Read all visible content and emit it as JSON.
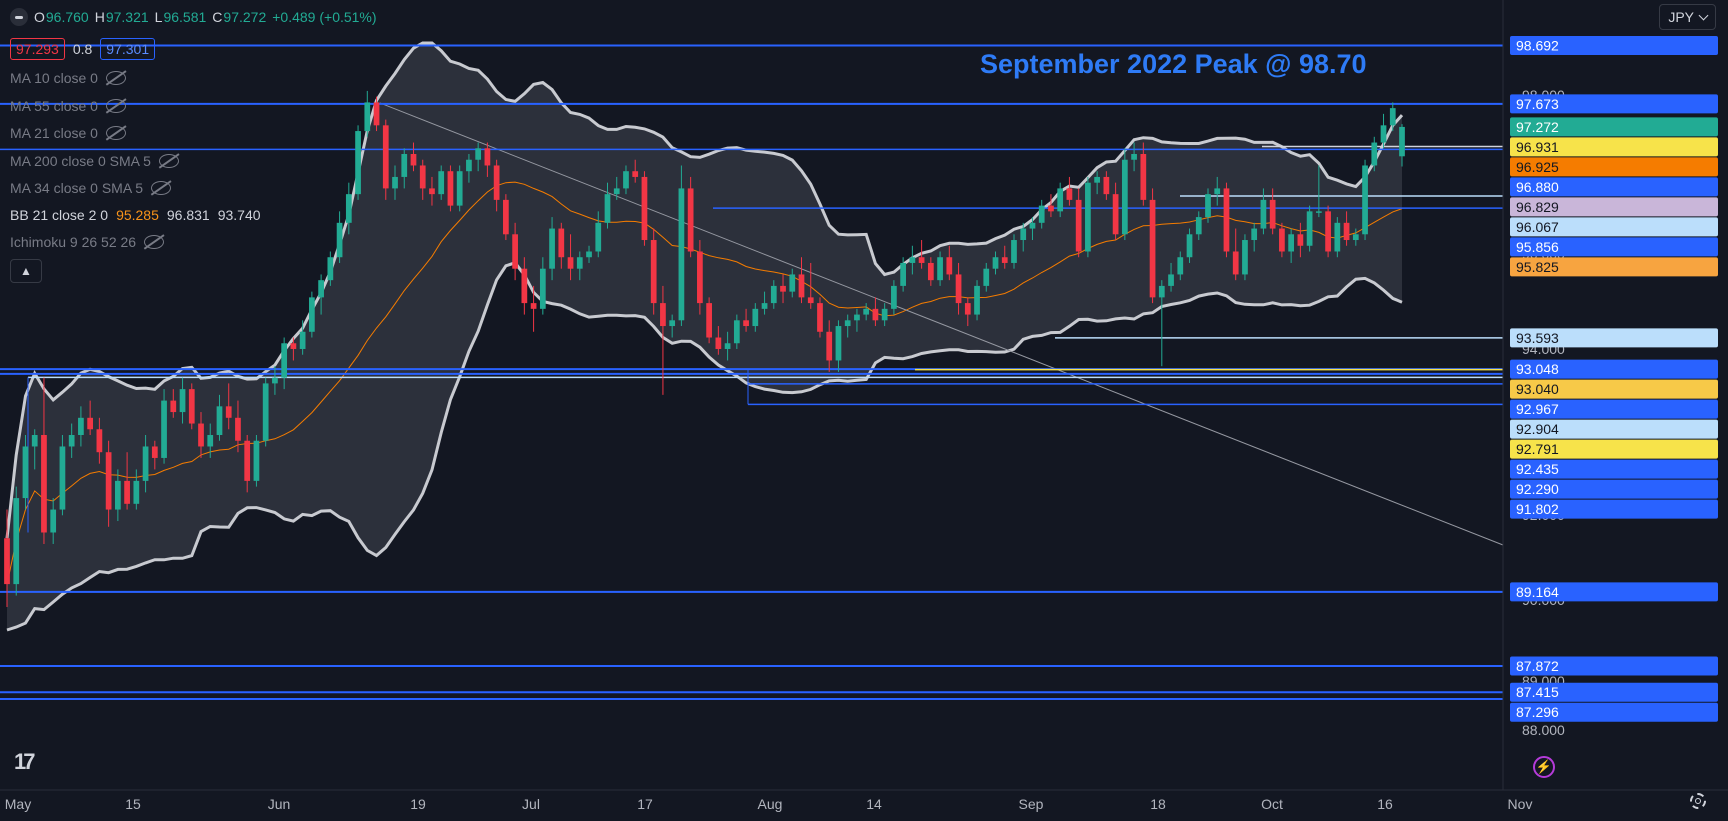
{
  "header": {
    "open_label": "O",
    "open": "96.760",
    "high_label": "H",
    "high": "97.321",
    "low_label": "L",
    "low": "96.581",
    "close_label": "C",
    "close": "97.272",
    "change": "+0.489 (+0.51%)"
  },
  "price_box": {
    "sell": "97.293",
    "spread": "0.8",
    "buy": "97.301"
  },
  "indicators": [
    {
      "label": "MA 10 close 0",
      "hidden": true
    },
    {
      "label": "MA 55 close 0",
      "hidden": true
    },
    {
      "label": "MA 21 close 0",
      "hidden": true
    },
    {
      "label": "MA 200 close 0 SMA 5",
      "hidden": true
    },
    {
      "label": "MA 34 close 0 SMA 5",
      "hidden": true
    }
  ],
  "bb": {
    "label": "BB 21 close 2 0",
    "basis": "95.285",
    "upper": "96.831",
    "lower": "93.740"
  },
  "ichimoku": {
    "label": "Ichimoku 9 26 52 26",
    "hidden": true
  },
  "currency": "JPY",
  "colors": {
    "up": "#22ab94",
    "down": "#f23645",
    "level": "#2962ff",
    "bands": "#c8cad0",
    "basis": "#f57c00",
    "annotation": "#2e7bf6"
  },
  "chart_data": {
    "type": "candlestick",
    "annotation": "September 2022 Peak @ 98.70",
    "x_ticks": [
      "May",
      "15",
      "Jun",
      "19",
      "Jul",
      "17",
      "Aug",
      "14",
      "Sep",
      "18",
      "Oct",
      "16",
      "Nov"
    ],
    "y_ticks": [
      "98.000",
      "96.000",
      "94.000",
      "92.000",
      "90.000",
      "89.000",
      "88.000"
    ],
    "price_labels": [
      {
        "value": "98.692",
        "color": "#2962ff",
        "text": "#ffffff"
      },
      {
        "value": "97.673",
        "color": "#2962ff",
        "text": "#ffffff"
      },
      {
        "value": "97.272",
        "color": "#22ab94",
        "text": "#ffffff"
      },
      {
        "value": "96.931",
        "color": "#f7e34a",
        "text": "#131722"
      },
      {
        "value": "96.925",
        "color": "#f57c00",
        "text": "#131722"
      },
      {
        "value": "96.880",
        "color": "#2962ff",
        "text": "#ffffff"
      },
      {
        "value": "96.829",
        "color": "#c9b6d9",
        "text": "#131722"
      },
      {
        "value": "96.067",
        "color": "#bbdefb",
        "text": "#131722"
      },
      {
        "value": "95.856",
        "color": "#2962ff",
        "text": "#ffffff"
      },
      {
        "value": "95.825",
        "color": "#f7a440",
        "text": "#131722"
      },
      {
        "value": "93.593",
        "color": "#bbdefb",
        "text": "#131722"
      },
      {
        "value": "93.048",
        "color": "#2962ff",
        "text": "#ffffff"
      },
      {
        "value": "93.040",
        "color": "#f7c948",
        "text": "#131722"
      },
      {
        "value": "92.967",
        "color": "#2962ff",
        "text": "#ffffff"
      },
      {
        "value": "92.904",
        "color": "#bbdefb",
        "text": "#131722"
      },
      {
        "value": "92.791",
        "color": "#f7e34a",
        "text": "#131722"
      },
      {
        "value": "92.435",
        "color": "#2962ff",
        "text": "#ffffff"
      },
      {
        "value": "92.290",
        "color": "#2962ff",
        "text": "#ffffff"
      },
      {
        "value": "91.802",
        "color": "#2962ff",
        "text": "#ffffff"
      },
      {
        "value": "89.164",
        "color": "#2962ff",
        "text": "#ffffff"
      },
      {
        "value": "87.872",
        "color": "#2962ff",
        "text": "#ffffff"
      },
      {
        "value": "87.415",
        "color": "#2962ff",
        "text": "#ffffff"
      },
      {
        "value": "87.296",
        "color": "#2962ff",
        "text": "#ffffff"
      }
    ],
    "candles": [
      {
        "o": 90.1,
        "h": 90.6,
        "l": 88.9,
        "c": 89.3
      },
      {
        "o": 89.3,
        "h": 91.0,
        "l": 89.1,
        "c": 90.8
      },
      {
        "o": 90.8,
        "h": 91.9,
        "l": 90.6,
        "c": 91.7
      },
      {
        "o": 91.7,
        "h": 92.0,
        "l": 91.3,
        "c": 91.9
      },
      {
        "o": 91.9,
        "h": 92.9,
        "l": 90.0,
        "c": 90.2
      },
      {
        "o": 90.2,
        "h": 90.8,
        "l": 90.0,
        "c": 90.6
      },
      {
        "o": 90.6,
        "h": 91.9,
        "l": 90.5,
        "c": 91.7
      },
      {
        "o": 91.7,
        "h": 92.1,
        "l": 91.5,
        "c": 91.9
      },
      {
        "o": 91.9,
        "h": 92.4,
        "l": 91.7,
        "c": 92.2
      },
      {
        "o": 92.2,
        "h": 92.5,
        "l": 91.9,
        "c": 92.0
      },
      {
        "o": 92.0,
        "h": 92.2,
        "l": 91.4,
        "c": 91.6
      },
      {
        "o": 91.6,
        "h": 91.8,
        "l": 90.3,
        "c": 90.6
      },
      {
        "o": 90.6,
        "h": 91.3,
        "l": 90.4,
        "c": 91.1
      },
      {
        "o": 91.1,
        "h": 91.6,
        "l": 90.6,
        "c": 90.7
      },
      {
        "o": 90.7,
        "h": 91.3,
        "l": 90.6,
        "c": 91.1
      },
      {
        "o": 91.1,
        "h": 91.9,
        "l": 90.9,
        "c": 91.7
      },
      {
        "o": 91.7,
        "h": 91.8,
        "l": 91.3,
        "c": 91.5
      },
      {
        "o": 91.5,
        "h": 92.7,
        "l": 91.4,
        "c": 92.5
      },
      {
        "o": 92.5,
        "h": 92.7,
        "l": 92.2,
        "c": 92.3
      },
      {
        "o": 92.3,
        "h": 92.9,
        "l": 92.1,
        "c": 92.7
      },
      {
        "o": 92.7,
        "h": 92.8,
        "l": 92.0,
        "c": 92.1
      },
      {
        "o": 92.1,
        "h": 92.3,
        "l": 91.5,
        "c": 91.7
      },
      {
        "o": 91.7,
        "h": 92.1,
        "l": 91.5,
        "c": 91.9
      },
      {
        "o": 91.9,
        "h": 92.6,
        "l": 91.8,
        "c": 92.4
      },
      {
        "o": 92.4,
        "h": 92.8,
        "l": 92.0,
        "c": 92.2
      },
      {
        "o": 92.2,
        "h": 92.5,
        "l": 91.6,
        "c": 91.8
      },
      {
        "o": 91.8,
        "h": 91.9,
        "l": 90.9,
        "c": 91.1
      },
      {
        "o": 91.1,
        "h": 91.9,
        "l": 91.0,
        "c": 91.8
      },
      {
        "o": 91.8,
        "h": 92.9,
        "l": 91.7,
        "c": 92.8
      },
      {
        "o": 92.8,
        "h": 93.1,
        "l": 92.6,
        "c": 92.9
      },
      {
        "o": 92.9,
        "h": 93.6,
        "l": 92.7,
        "c": 93.5
      },
      {
        "o": 93.5,
        "h": 93.6,
        "l": 93.2,
        "c": 93.4
      },
      {
        "o": 93.4,
        "h": 93.9,
        "l": 93.3,
        "c": 93.7
      },
      {
        "o": 93.7,
        "h": 94.4,
        "l": 93.6,
        "c": 94.3
      },
      {
        "o": 94.3,
        "h": 94.7,
        "l": 94.0,
        "c": 94.6
      },
      {
        "o": 94.6,
        "h": 95.1,
        "l": 94.5,
        "c": 95.0
      },
      {
        "o": 95.0,
        "h": 95.8,
        "l": 94.9,
        "c": 95.6
      },
      {
        "o": 95.6,
        "h": 96.3,
        "l": 95.4,
        "c": 96.1
      },
      {
        "o": 96.1,
        "h": 97.3,
        "l": 96.0,
        "c": 97.2
      },
      {
        "o": 97.2,
        "h": 97.9,
        "l": 97.1,
        "c": 97.7
      },
      {
        "o": 97.7,
        "h": 97.8,
        "l": 97.2,
        "c": 97.3
      },
      {
        "o": 97.3,
        "h": 97.4,
        "l": 96.0,
        "c": 96.2
      },
      {
        "o": 96.2,
        "h": 96.6,
        "l": 96.0,
        "c": 96.4
      },
      {
        "o": 96.4,
        "h": 96.9,
        "l": 96.2,
        "c": 96.8
      },
      {
        "o": 96.8,
        "h": 97.0,
        "l": 96.5,
        "c": 96.6
      },
      {
        "o": 96.6,
        "h": 96.7,
        "l": 96.0,
        "c": 96.2
      },
      {
        "o": 96.2,
        "h": 96.4,
        "l": 95.9,
        "c": 96.1
      },
      {
        "o": 96.1,
        "h": 96.6,
        "l": 96.0,
        "c": 96.5
      },
      {
        "o": 96.5,
        "h": 96.6,
        "l": 95.8,
        "c": 95.9
      },
      {
        "o": 95.9,
        "h": 96.6,
        "l": 95.8,
        "c": 96.5
      },
      {
        "o": 96.5,
        "h": 96.8,
        "l": 96.3,
        "c": 96.7
      },
      {
        "o": 96.7,
        "h": 97.0,
        "l": 96.5,
        "c": 96.9
      },
      {
        "o": 96.9,
        "h": 97.0,
        "l": 96.4,
        "c": 96.6
      },
      {
        "o": 96.6,
        "h": 96.7,
        "l": 95.8,
        "c": 96.0
      },
      {
        "o": 96.0,
        "h": 96.1,
        "l": 95.3,
        "c": 95.4
      },
      {
        "o": 95.4,
        "h": 95.6,
        "l": 94.6,
        "c": 94.8
      },
      {
        "o": 94.8,
        "h": 95.0,
        "l": 94.0,
        "c": 94.2
      },
      {
        "o": 94.2,
        "h": 94.5,
        "l": 93.7,
        "c": 94.1
      },
      {
        "o": 94.1,
        "h": 95.0,
        "l": 94.0,
        "c": 94.8
      },
      {
        "o": 94.8,
        "h": 95.7,
        "l": 94.6,
        "c": 95.5
      },
      {
        "o": 95.5,
        "h": 95.6,
        "l": 94.8,
        "c": 95.0
      },
      {
        "o": 95.0,
        "h": 95.4,
        "l": 94.6,
        "c": 94.8
      },
      {
        "o": 94.8,
        "h": 95.1,
        "l": 94.6,
        "c": 95.0
      },
      {
        "o": 95.0,
        "h": 95.2,
        "l": 94.9,
        "c": 95.1
      },
      {
        "o": 95.1,
        "h": 95.8,
        "l": 95.0,
        "c": 95.6
      },
      {
        "o": 95.6,
        "h": 96.3,
        "l": 95.5,
        "c": 96.1
      },
      {
        "o": 96.1,
        "h": 96.4,
        "l": 96.0,
        "c": 96.2
      },
      {
        "o": 96.2,
        "h": 96.6,
        "l": 96.1,
        "c": 96.5
      },
      {
        "o": 96.5,
        "h": 96.7,
        "l": 96.3,
        "c": 96.4
      },
      {
        "o": 96.4,
        "h": 96.5,
        "l": 95.2,
        "c": 95.3
      },
      {
        "o": 95.3,
        "h": 95.5,
        "l": 94.0,
        "c": 94.2
      },
      {
        "o": 94.2,
        "h": 94.5,
        "l": 92.6,
        "c": 93.8
      },
      {
        "o": 93.8,
        "h": 94.0,
        "l": 93.6,
        "c": 93.9
      },
      {
        "o": 93.9,
        "h": 96.6,
        "l": 93.8,
        "c": 96.2
      },
      {
        "o": 96.2,
        "h": 96.4,
        "l": 95.0,
        "c": 95.1
      },
      {
        "o": 95.1,
        "h": 95.3,
        "l": 94.0,
        "c": 94.2
      },
      {
        "o": 94.2,
        "h": 94.3,
        "l": 93.5,
        "c": 93.6
      },
      {
        "o": 93.6,
        "h": 93.8,
        "l": 93.3,
        "c": 93.4
      },
      {
        "o": 93.4,
        "h": 93.7,
        "l": 93.2,
        "c": 93.5
      },
      {
        "o": 93.5,
        "h": 94.0,
        "l": 93.4,
        "c": 93.9
      },
      {
        "o": 93.9,
        "h": 94.1,
        "l": 93.7,
        "c": 93.8
      },
      {
        "o": 93.8,
        "h": 94.2,
        "l": 93.7,
        "c": 94.1
      },
      {
        "o": 94.1,
        "h": 94.4,
        "l": 94.0,
        "c": 94.2
      },
      {
        "o": 94.2,
        "h": 94.6,
        "l": 94.1,
        "c": 94.5
      },
      {
        "o": 94.5,
        "h": 94.7,
        "l": 94.2,
        "c": 94.4
      },
      {
        "o": 94.4,
        "h": 94.8,
        "l": 94.3,
        "c": 94.7
      },
      {
        "o": 94.7,
        "h": 95.0,
        "l": 94.2,
        "c": 94.3
      },
      {
        "o": 94.3,
        "h": 94.9,
        "l": 94.1,
        "c": 94.2
      },
      {
        "o": 94.2,
        "h": 94.3,
        "l": 93.6,
        "c": 93.7
      },
      {
        "o": 93.7,
        "h": 93.9,
        "l": 93.0,
        "c": 93.2
      },
      {
        "o": 93.2,
        "h": 93.9,
        "l": 93.0,
        "c": 93.8
      },
      {
        "o": 93.8,
        "h": 94.0,
        "l": 93.6,
        "c": 93.9
      },
      {
        "o": 93.9,
        "h": 94.1,
        "l": 93.7,
        "c": 94.0
      },
      {
        "o": 94.0,
        "h": 94.2,
        "l": 93.9,
        "c": 94.1
      },
      {
        "o": 94.1,
        "h": 94.3,
        "l": 93.8,
        "c": 93.9
      },
      {
        "o": 93.9,
        "h": 94.2,
        "l": 93.8,
        "c": 94.1
      },
      {
        "o": 94.1,
        "h": 94.6,
        "l": 94.0,
        "c": 94.5
      },
      {
        "o": 94.5,
        "h": 95.0,
        "l": 94.4,
        "c": 94.9
      },
      {
        "o": 94.9,
        "h": 95.2,
        "l": 94.7,
        "c": 95.0
      },
      {
        "o": 95.0,
        "h": 95.3,
        "l": 94.8,
        "c": 94.9
      },
      {
        "o": 94.9,
        "h": 95.0,
        "l": 94.5,
        "c": 94.6
      },
      {
        "o": 94.6,
        "h": 95.1,
        "l": 94.5,
        "c": 95.0
      },
      {
        "o": 95.0,
        "h": 95.2,
        "l": 94.6,
        "c": 94.7
      },
      {
        "o": 94.7,
        "h": 94.9,
        "l": 94.0,
        "c": 94.2
      },
      {
        "o": 94.2,
        "h": 94.3,
        "l": 93.8,
        "c": 94.0
      },
      {
        "o": 94.0,
        "h": 94.6,
        "l": 93.9,
        "c": 94.5
      },
      {
        "o": 94.5,
        "h": 94.9,
        "l": 94.4,
        "c": 94.8
      },
      {
        "o": 94.8,
        "h": 95.1,
        "l": 94.7,
        "c": 95.0
      },
      {
        "o": 95.0,
        "h": 95.2,
        "l": 94.8,
        "c": 94.9
      },
      {
        "o": 94.9,
        "h": 95.4,
        "l": 94.8,
        "c": 95.3
      },
      {
        "o": 95.3,
        "h": 95.6,
        "l": 95.1,
        "c": 95.5
      },
      {
        "o": 95.5,
        "h": 95.7,
        "l": 95.3,
        "c": 95.6
      },
      {
        "o": 95.6,
        "h": 96.0,
        "l": 95.5,
        "c": 95.9
      },
      {
        "o": 95.9,
        "h": 96.1,
        "l": 95.7,
        "c": 95.8
      },
      {
        "o": 95.8,
        "h": 96.3,
        "l": 95.7,
        "c": 96.2
      },
      {
        "o": 96.2,
        "h": 96.4,
        "l": 95.9,
        "c": 96.0
      },
      {
        "o": 96.0,
        "h": 96.2,
        "l": 95.0,
        "c": 95.1
      },
      {
        "o": 95.1,
        "h": 96.4,
        "l": 95.0,
        "c": 96.3
      },
      {
        "o": 96.3,
        "h": 96.5,
        "l": 96.1,
        "c": 96.4
      },
      {
        "o": 96.4,
        "h": 96.5,
        "l": 96.0,
        "c": 96.1
      },
      {
        "o": 96.1,
        "h": 96.3,
        "l": 95.3,
        "c": 95.4
      },
      {
        "o": 95.4,
        "h": 96.9,
        "l": 95.3,
        "c": 96.7
      },
      {
        "o": 96.7,
        "h": 97.0,
        "l": 96.5,
        "c": 96.8
      },
      {
        "o": 96.8,
        "h": 97.0,
        "l": 95.9,
        "c": 96.0
      },
      {
        "o": 96.0,
        "h": 96.2,
        "l": 94.2,
        "c": 94.3
      },
      {
        "o": 94.3,
        "h": 94.6,
        "l": 93.1,
        "c": 94.5
      },
      {
        "o": 94.5,
        "h": 94.9,
        "l": 94.4,
        "c": 94.7
      },
      {
        "o": 94.7,
        "h": 95.1,
        "l": 94.6,
        "c": 95.0
      },
      {
        "o": 95.0,
        "h": 95.5,
        "l": 94.9,
        "c": 95.4
      },
      {
        "o": 95.4,
        "h": 95.8,
        "l": 95.3,
        "c": 95.7
      },
      {
        "o": 95.7,
        "h": 96.2,
        "l": 95.6,
        "c": 96.1
      },
      {
        "o": 96.1,
        "h": 96.4,
        "l": 95.9,
        "c": 96.2
      },
      {
        "o": 96.2,
        "h": 96.3,
        "l": 95.0,
        "c": 95.1
      },
      {
        "o": 95.1,
        "h": 95.5,
        "l": 94.6,
        "c": 94.7
      },
      {
        "o": 94.7,
        "h": 95.4,
        "l": 94.6,
        "c": 95.3
      },
      {
        "o": 95.3,
        "h": 95.6,
        "l": 95.1,
        "c": 95.5
      },
      {
        "o": 95.5,
        "h": 96.2,
        "l": 95.4,
        "c": 96.0
      },
      {
        "o": 96.0,
        "h": 96.2,
        "l": 95.4,
        "c": 95.5
      },
      {
        "o": 95.5,
        "h": 95.6,
        "l": 95.0,
        "c": 95.1
      },
      {
        "o": 95.1,
        "h": 95.5,
        "l": 94.9,
        "c": 95.4
      },
      {
        "o": 95.4,
        "h": 95.6,
        "l": 95.0,
        "c": 95.2
      },
      {
        "o": 95.2,
        "h": 95.9,
        "l": 95.1,
        "c": 95.8
      },
      {
        "o": 95.8,
        "h": 96.6,
        "l": 95.7,
        "c": 95.8
      },
      {
        "o": 95.8,
        "h": 95.9,
        "l": 95.0,
        "c": 95.1
      },
      {
        "o": 95.1,
        "h": 95.7,
        "l": 95.0,
        "c": 95.6
      },
      {
        "o": 95.6,
        "h": 95.8,
        "l": 95.2,
        "c": 95.3
      },
      {
        "o": 95.3,
        "h": 95.5,
        "l": 95.2,
        "c": 95.4
      },
      {
        "o": 95.4,
        "h": 96.7,
        "l": 95.3,
        "c": 96.6
      },
      {
        "o": 96.6,
        "h": 97.1,
        "l": 96.5,
        "c": 97.0
      },
      {
        "o": 97.0,
        "h": 97.5,
        "l": 96.9,
        "c": 97.3
      },
      {
        "o": 97.3,
        "h": 97.7,
        "l": 97.2,
        "c": 97.6
      },
      {
        "o": 96.76,
        "h": 97.321,
        "l": 96.581,
        "c": 97.272
      }
    ]
  }
}
